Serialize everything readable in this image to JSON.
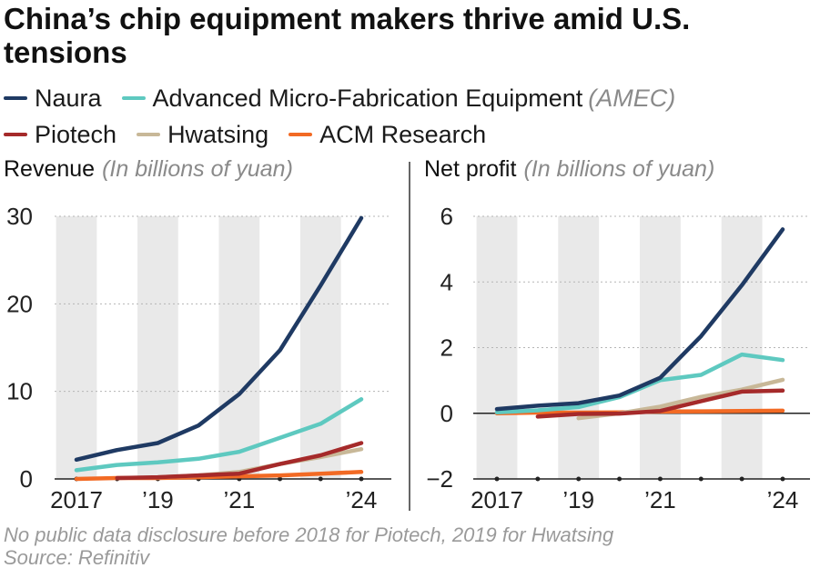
{
  "title": "China’s chip equipment makers thrive amid U.S. tensions",
  "legend": [
    {
      "name": "Naura",
      "color": "#1f3a63"
    },
    {
      "name": "Advanced Micro-Fabrication Equipment",
      "abbr": "(AMEC)",
      "color": "#5ec9c0"
    },
    {
      "name": "Piotech",
      "color": "#a52a2a"
    },
    {
      "name": "Hwatsing",
      "color": "#c8b898"
    },
    {
      "name": "ACM Research",
      "color": "#f26a24"
    }
  ],
  "chart_data": [
    {
      "type": "line",
      "title": "Revenue",
      "units": "(In billions of yuan)",
      "x": [
        2017,
        2018,
        2019,
        2020,
        2021,
        2022,
        2023,
        2024
      ],
      "x_tick_labels": [
        "2017",
        "’19",
        "’21",
        "’24"
      ],
      "x_tick_values": [
        2017,
        2019,
        2021,
        2024
      ],
      "ylim": [
        0,
        30
      ],
      "y_ticks": [
        0,
        10,
        20,
        30
      ],
      "y_tick_labels": [
        "0",
        "10",
        "20",
        "30"
      ],
      "series": [
        {
          "name": "Naura",
          "color": "#1f3a63",
          "values": [
            2.2,
            3.3,
            4.1,
            6.1,
            9.7,
            14.7,
            22.1,
            29.8
          ]
        },
        {
          "name": "Advanced Micro-Fabrication Equipment",
          "color": "#5ec9c0",
          "values": [
            1.0,
            1.6,
            1.9,
            2.3,
            3.1,
            4.7,
            6.3,
            9.1
          ]
        },
        {
          "name": "Piotech",
          "color": "#a52a2a",
          "values": [
            null,
            0.1,
            0.2,
            0.4,
            0.6,
            1.7,
            2.7,
            4.1
          ]
        },
        {
          "name": "Hwatsing",
          "color": "#c8b898",
          "values": [
            null,
            null,
            0.2,
            0.4,
            0.8,
            1.7,
            2.5,
            3.4
          ]
        },
        {
          "name": "ACM Research",
          "color": "#f26a24",
          "values": [
            0.0,
            0.1,
            0.1,
            0.2,
            0.3,
            0.4,
            0.6,
            0.8
          ]
        }
      ]
    },
    {
      "type": "line",
      "title": "Net profit",
      "units": "(In billions of yuan)",
      "x": [
        2017,
        2018,
        2019,
        2020,
        2021,
        2022,
        2023,
        2024
      ],
      "x_tick_labels": [
        "2017",
        "’19",
        "’21",
        "’24"
      ],
      "x_tick_values": [
        2017,
        2019,
        2021,
        2024
      ],
      "ylim": [
        -2,
        6
      ],
      "y_ticks": [
        -2,
        0,
        2,
        4,
        6
      ],
      "y_tick_labels": [
        "−2",
        "0",
        "2",
        "4",
        "6"
      ],
      "series": [
        {
          "name": "Naura",
          "color": "#1f3a63",
          "values": [
            0.13,
            0.23,
            0.31,
            0.54,
            1.08,
            2.35,
            3.9,
            5.6
          ]
        },
        {
          "name": "Advanced Micro-Fabrication Equipment",
          "color": "#5ec9c0",
          "values": [
            0.03,
            0.09,
            0.19,
            0.49,
            1.01,
            1.17,
            1.79,
            1.62
          ]
        },
        {
          "name": "Piotech",
          "color": "#a52a2a",
          "values": [
            null,
            -0.1,
            -0.02,
            -0.01,
            0.07,
            0.37,
            0.66,
            0.69
          ]
        },
        {
          "name": "Hwatsing",
          "color": "#c8b898",
          "values": [
            null,
            null,
            -0.15,
            0.0,
            0.2,
            0.5,
            0.72,
            1.02
          ]
        },
        {
          "name": "ACM Research",
          "color": "#f26a24",
          "values": [
            0.0,
            0.02,
            0.02,
            0.03,
            0.05,
            0.06,
            0.07,
            0.08
          ]
        }
      ]
    }
  ],
  "footnote": "No public data disclosure before 2018 for Piotech, 2019 for Hwatsing",
  "source": "Source: Refinitiv"
}
